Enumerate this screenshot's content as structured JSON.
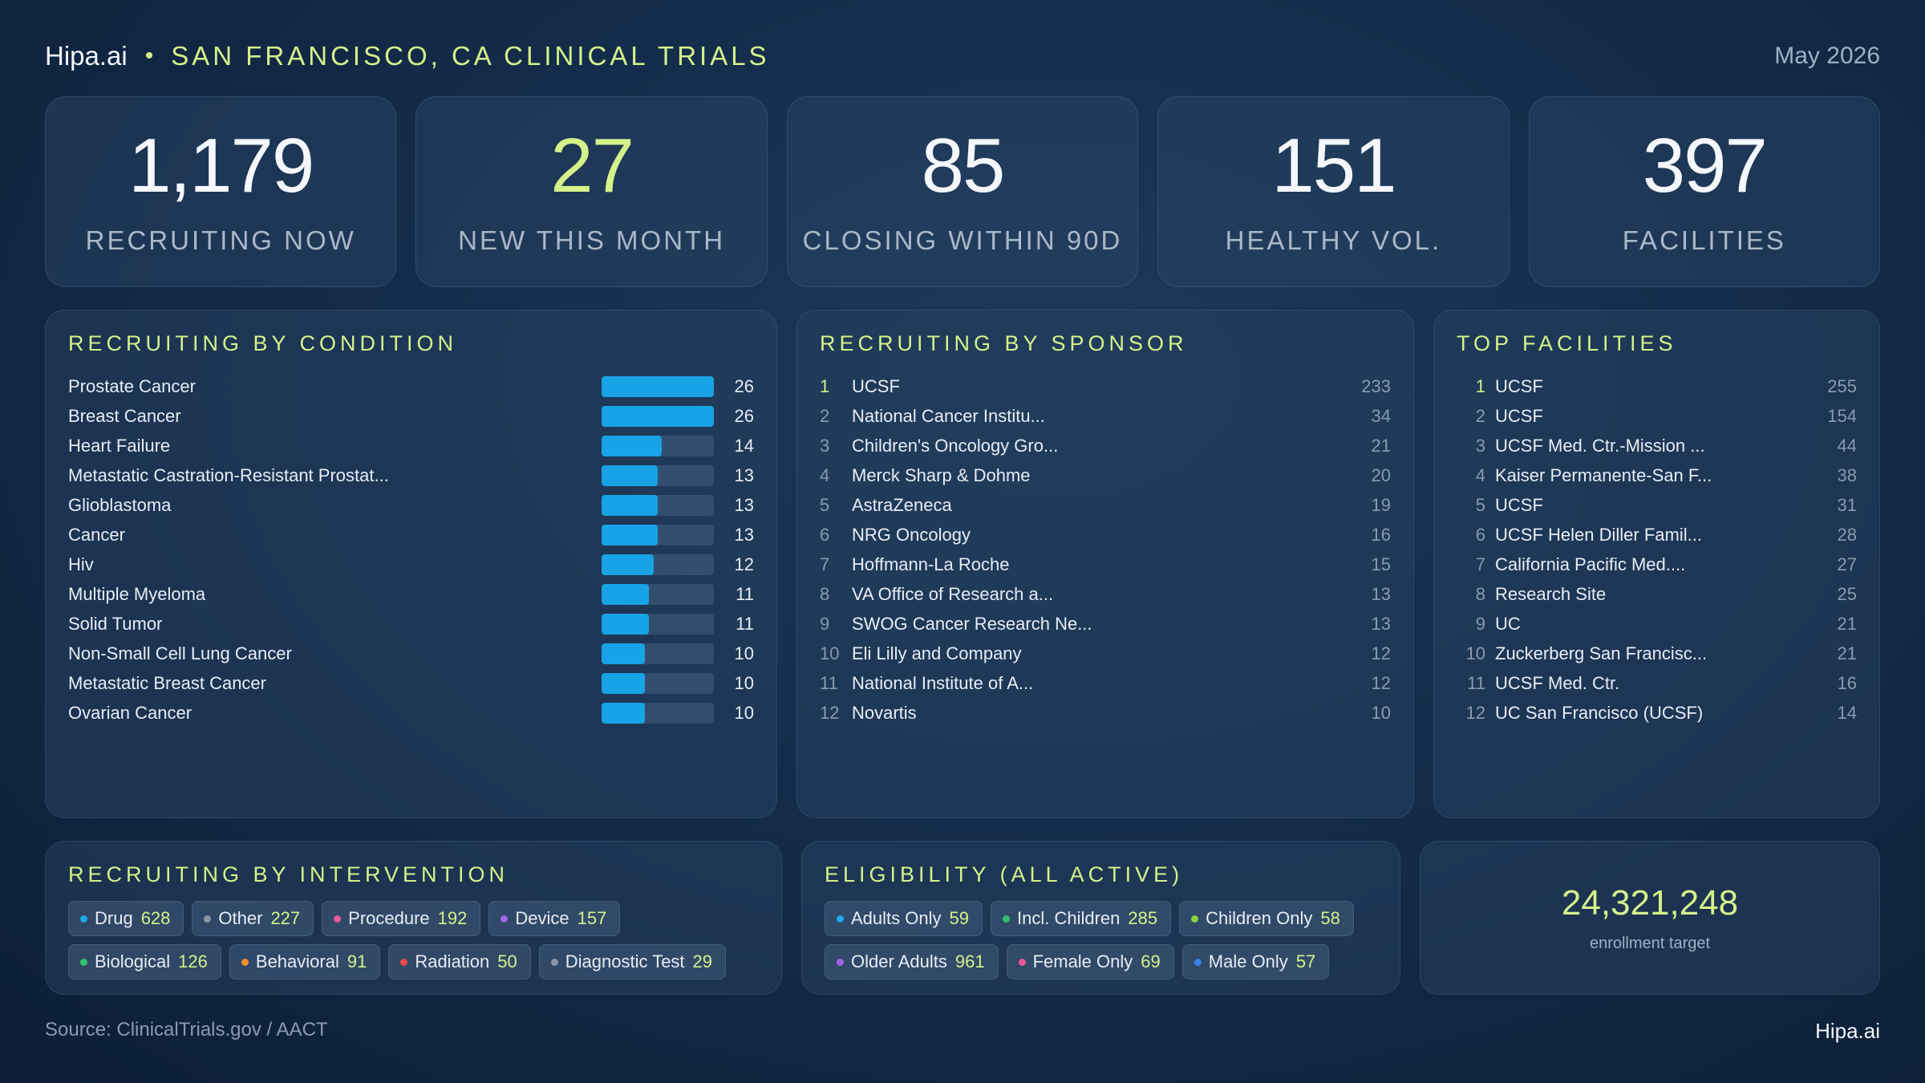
{
  "header": {
    "brand": "Hipa.ai",
    "separator": "•",
    "title": "SAN FRANCISCO, CA CLINICAL TRIALS",
    "date": "May 2026"
  },
  "kpis": [
    {
      "value": "1,179",
      "label": "RECRUITING NOW",
      "accent": false
    },
    {
      "value": "27",
      "label": "NEW THIS MONTH",
      "accent": true
    },
    {
      "value": "85",
      "label": "CLOSING WITHIN 90D",
      "accent": false
    },
    {
      "value": "151",
      "label": "HEALTHY VOL.",
      "accent": false
    },
    {
      "value": "397",
      "label": "FACILITIES",
      "accent": false
    }
  ],
  "conditions": {
    "title": "RECRUITING BY CONDITION",
    "max": 26,
    "items": [
      {
        "name": "Prostate Cancer",
        "value": 26
      },
      {
        "name": "Breast Cancer",
        "value": 26
      },
      {
        "name": "Heart Failure",
        "value": 14
      },
      {
        "name": "Metastatic Castration-Resistant Prostat...",
        "value": 13
      },
      {
        "name": "Glioblastoma",
        "value": 13
      },
      {
        "name": "Cancer",
        "value": 13
      },
      {
        "name": "Hiv",
        "value": 12
      },
      {
        "name": "Multiple Myeloma",
        "value": 11
      },
      {
        "name": "Solid Tumor",
        "value": 11
      },
      {
        "name": "Non-Small Cell Lung Cancer",
        "value": 10
      },
      {
        "name": "Metastatic Breast Cancer",
        "value": 10
      },
      {
        "name": "Ovarian Cancer",
        "value": 10
      }
    ]
  },
  "sponsors": {
    "title": "RECRUITING BY SPONSOR",
    "items": [
      {
        "rank": "1",
        "name": "UCSF",
        "value": "233"
      },
      {
        "rank": "2",
        "name": "National Cancer Institu...",
        "value": "34"
      },
      {
        "rank": "3",
        "name": "Children's Oncology Gro...",
        "value": "21"
      },
      {
        "rank": "4",
        "name": "Merck Sharp & Dohme",
        "value": "20"
      },
      {
        "rank": "5",
        "name": "AstraZeneca",
        "value": "19"
      },
      {
        "rank": "6",
        "name": "NRG Oncology",
        "value": "16"
      },
      {
        "rank": "7",
        "name": "Hoffmann-La Roche",
        "value": "15"
      },
      {
        "rank": "8",
        "name": "VA Office of Research a...",
        "value": "13"
      },
      {
        "rank": "9",
        "name": "SWOG Cancer Research Ne...",
        "value": "13"
      },
      {
        "rank": "10",
        "name": "Eli Lilly and Company",
        "value": "12"
      },
      {
        "rank": "11",
        "name": "National Institute of A...",
        "value": "12"
      },
      {
        "rank": "12",
        "name": "Novartis",
        "value": "10"
      }
    ]
  },
  "facilities": {
    "title": "TOP FACILITIES",
    "items": [
      {
        "rank": "1",
        "name": "UCSF",
        "value": "255"
      },
      {
        "rank": "2",
        "name": "UCSF",
        "value": "154"
      },
      {
        "rank": "3",
        "name": "UCSF Med. Ctr.-Mission ...",
        "value": "44"
      },
      {
        "rank": "4",
        "name": "Kaiser Permanente-San F...",
        "value": "38"
      },
      {
        "rank": "5",
        "name": "UCSF",
        "value": "31"
      },
      {
        "rank": "6",
        "name": "UCSF Helen Diller Famil...",
        "value": "28"
      },
      {
        "rank": "7",
        "name": "California Pacific Med....",
        "value": "27"
      },
      {
        "rank": "8",
        "name": "Research Site",
        "value": "25"
      },
      {
        "rank": "9",
        "name": "UC",
        "value": "21"
      },
      {
        "rank": "10",
        "name": "Zuckerberg San Francisc...",
        "value": "21"
      },
      {
        "rank": "11",
        "name": "UCSF Med. Ctr.",
        "value": "16"
      },
      {
        "rank": "12",
        "name": "UC San Francisco (UCSF)",
        "value": "14"
      }
    ]
  },
  "interventions": {
    "title": "RECRUITING BY INTERVENTION",
    "items": [
      {
        "label": "Drug",
        "count": "628",
        "color": "#1fa8ea"
      },
      {
        "label": "Other",
        "count": "227",
        "color": "#8a96a6"
      },
      {
        "label": "Procedure",
        "count": "192",
        "color": "#e8579a"
      },
      {
        "label": "Device",
        "count": "157",
        "color": "#a066e6"
      },
      {
        "label": "Biological",
        "count": "126",
        "color": "#2fc16a"
      },
      {
        "label": "Behavioral",
        "count": "91",
        "color": "#f08a2c"
      },
      {
        "label": "Radiation",
        "count": "50",
        "color": "#ea4a4a"
      },
      {
        "label": "Diagnostic Test",
        "count": "29",
        "color": "#8a96a6"
      }
    ]
  },
  "eligibility": {
    "title": "ELIGIBILITY (ALL ACTIVE)",
    "items": [
      {
        "label": "Adults Only",
        "count": "59",
        "color": "#1fa8ea"
      },
      {
        "label": "Incl. Children",
        "count": "285",
        "color": "#2fc16a"
      },
      {
        "label": "Children Only",
        "count": "58",
        "color": "#8ad23a"
      },
      {
        "label": "Older Adults",
        "count": "961",
        "color": "#a066e6"
      },
      {
        "label": "Female Only",
        "count": "69",
        "color": "#e8579a"
      },
      {
        "label": "Male Only",
        "count": "57",
        "color": "#3a7ee8"
      }
    ]
  },
  "target": {
    "value": "24,321,248",
    "label": "enrollment target"
  },
  "footer": {
    "source": "Source: ClinicalTrials.gov / AACT",
    "brand": "Hipa.ai"
  },
  "colors": {
    "accent": "#d4f28a",
    "bar": "#17a3e6"
  }
}
